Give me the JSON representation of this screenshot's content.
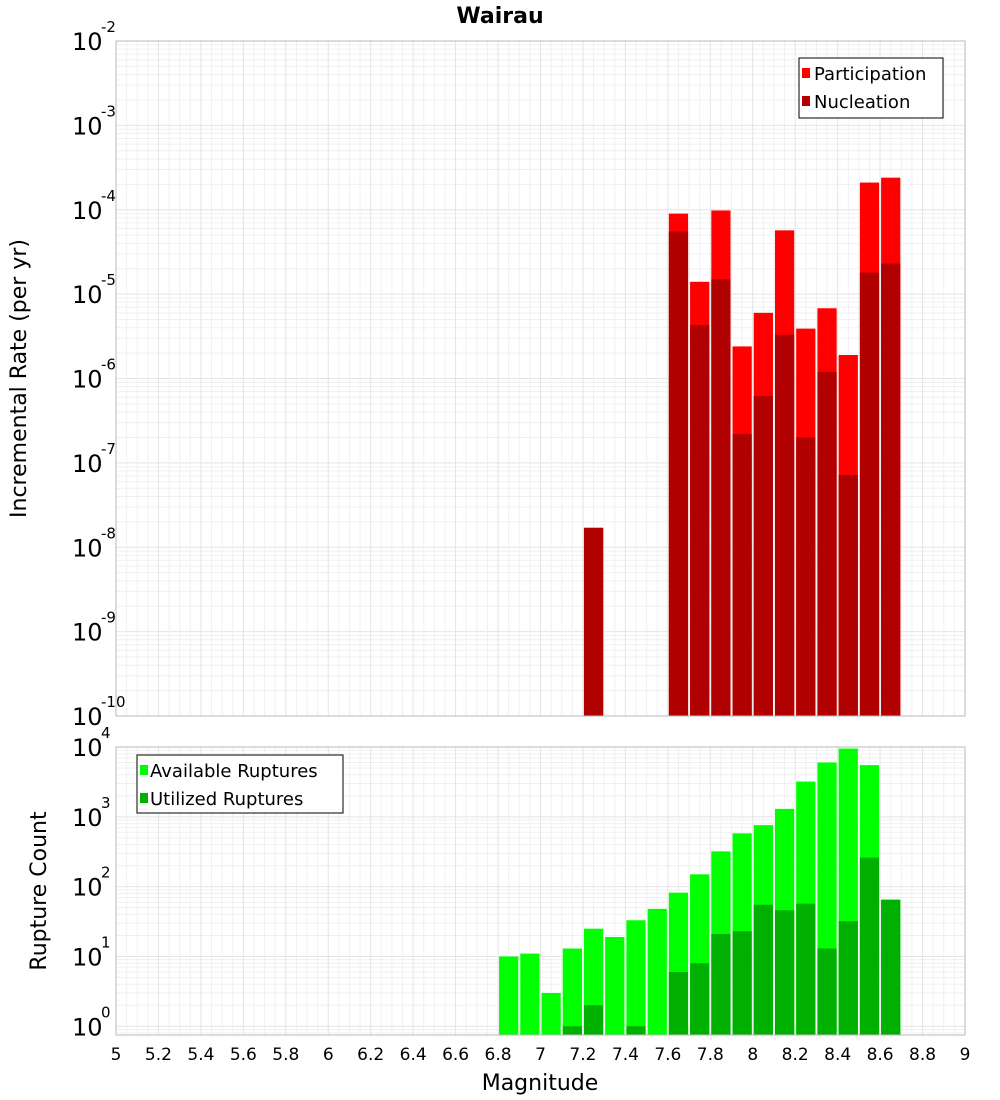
{
  "chart_data": [
    {
      "id": "rates",
      "type": "bar",
      "title": "Wairau",
      "xlabel": "",
      "ylabel": "Incremental Rate (per yr)",
      "yscale": "log",
      "ylim": [
        1e-10,
        0.01
      ],
      "xlim": [
        5,
        9
      ],
      "bin_width": 0.1,
      "y_ticks": [
        {
          "base": "10",
          "exp": "-10"
        },
        {
          "base": "10",
          "exp": "-9"
        },
        {
          "base": "10",
          "exp": "-8"
        },
        {
          "base": "10",
          "exp": "-7"
        },
        {
          "base": "10",
          "exp": "-6"
        },
        {
          "base": "10",
          "exp": "-5"
        },
        {
          "base": "10",
          "exp": "-4"
        },
        {
          "base": "10",
          "exp": "-3"
        },
        {
          "base": "10",
          "exp": "-2"
        }
      ],
      "legend_position": "top-right",
      "series": [
        {
          "name": "Participation",
          "color": "#ff0000",
          "x": [
            7.25,
            7.65,
            7.75,
            7.85,
            7.95,
            8.05,
            8.15,
            8.25,
            8.35,
            8.45,
            8.55,
            8.65
          ],
          "values": [
            1.7e-08,
            9e-05,
            1.4e-05,
            9.8e-05,
            2.4e-06,
            6e-06,
            5.7e-05,
            3.9e-06,
            6.8e-06,
            1.9e-06,
            0.00021,
            0.00024
          ]
        },
        {
          "name": "Nucleation",
          "color": "#b00000",
          "x": [
            7.25,
            7.65,
            7.75,
            7.85,
            7.95,
            8.05,
            8.15,
            8.25,
            8.35,
            8.45,
            8.55,
            8.65
          ],
          "values": [
            1.7e-08,
            5.5e-05,
            4.3e-06,
            1.5e-05,
            2.2e-07,
            6.2e-07,
            3.3e-06,
            2e-07,
            1.2e-06,
            7.2e-08,
            1.8e-05,
            2.3e-05
          ]
        }
      ]
    },
    {
      "id": "counts",
      "type": "bar",
      "title": "",
      "xlabel": "Magnitude",
      "ylabel": "Rupture Count",
      "yscale": "log",
      "ylim": [
        0.75,
        10000
      ],
      "xlim": [
        5,
        9
      ],
      "bin_width": 0.1,
      "y_ticks": [
        {
          "base": "10",
          "exp": "0"
        },
        {
          "base": "10",
          "exp": "1"
        },
        {
          "base": "10",
          "exp": "2"
        },
        {
          "base": "10",
          "exp": "3"
        },
        {
          "base": "10",
          "exp": "4"
        }
      ],
      "x_tick_labels": [
        "5",
        "5.2",
        "5.4",
        "5.6",
        "5.8",
        "6",
        "6.2",
        "6.4",
        "6.6",
        "6.8",
        "7",
        "7.2",
        "7.4",
        "7.6",
        "7.8",
        "8",
        "8.2",
        "8.4",
        "8.6",
        "8.8",
        "9"
      ],
      "legend_position": "top-left",
      "series": [
        {
          "name": "Available Ruptures",
          "color": "#00ff00",
          "x": [
            6.85,
            6.95,
            7.05,
            7.15,
            7.25,
            7.35,
            7.45,
            7.55,
            7.65,
            7.75,
            7.85,
            7.95,
            8.05,
            8.15,
            8.25,
            8.35,
            8.45,
            8.55,
            8.65
          ],
          "values": [
            10,
            11,
            3,
            13,
            25,
            19,
            33,
            48,
            82,
            150,
            320,
            580,
            760,
            1300,
            3200,
            6000,
            9500,
            5500,
            65
          ]
        },
        {
          "name": "Utilized Ruptures",
          "color": "#00b000",
          "x": [
            7.15,
            7.25,
            7.45,
            7.65,
            7.75,
            7.85,
            7.95,
            8.05,
            8.15,
            8.25,
            8.35,
            8.45,
            8.55,
            8.65
          ],
          "values": [
            1,
            2,
            1,
            6,
            8,
            21,
            23,
            55,
            46,
            57,
            13,
            32,
            260,
            65
          ]
        }
      ]
    }
  ]
}
